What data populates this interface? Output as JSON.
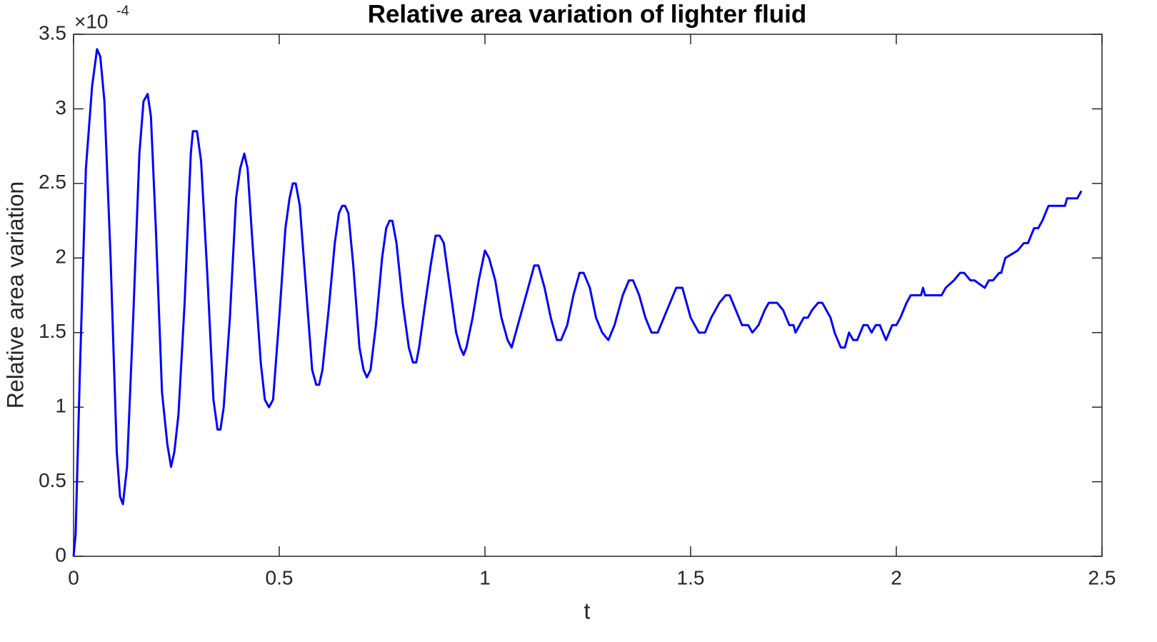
{
  "chart_data": {
    "type": "line",
    "title": "Relative area variation of lighter fluid",
    "x_label": "t",
    "y_label": "Relative area variation",
    "y_multiplier": "×10",
    "y_multiplier_exponent": "-4",
    "color": "#0000ff",
    "xlim": [
      0,
      2.5
    ],
    "xticks": [
      0,
      0.5,
      1,
      1.5,
      2,
      2.5
    ],
    "ylim": [
      0,
      3.5
    ],
    "yticks": [
      0,
      0.5,
      1,
      1.5,
      2,
      2.5,
      3,
      3.5
    ],
    "x": [
      0,
      0.005,
      0.015,
      0.03,
      0.045,
      0.057,
      0.065,
      0.075,
      0.09,
      0.105,
      0.113,
      0.12,
      0.13,
      0.145,
      0.16,
      0.17,
      0.18,
      0.188,
      0.2,
      0.215,
      0.228,
      0.237,
      0.245,
      0.255,
      0.27,
      0.285,
      0.29,
      0.3,
      0.31,
      0.325,
      0.34,
      0.35,
      0.357,
      0.365,
      0.38,
      0.395,
      0.405,
      0.415,
      0.423,
      0.435,
      0.455,
      0.465,
      0.475,
      0.485,
      0.5,
      0.515,
      0.525,
      0.533,
      0.54,
      0.55,
      0.565,
      0.58,
      0.59,
      0.597,
      0.605,
      0.62,
      0.635,
      0.645,
      0.653,
      0.66,
      0.668,
      0.68,
      0.695,
      0.705,
      0.713,
      0.722,
      0.735,
      0.75,
      0.76,
      0.768,
      0.775,
      0.785,
      0.8,
      0.815,
      0.825,
      0.833,
      0.84,
      0.855,
      0.868,
      0.88,
      0.89,
      0.9,
      0.915,
      0.93,
      0.94,
      0.948,
      0.955,
      0.97,
      0.985,
      1.0,
      1.01,
      1.025,
      1.04,
      1.055,
      1.065,
      1.08,
      1.095,
      1.11,
      1.12,
      1.13,
      1.145,
      1.16,
      1.175,
      1.185,
      1.2,
      1.215,
      1.23,
      1.24,
      1.255,
      1.27,
      1.285,
      1.3,
      1.315,
      1.325,
      1.335,
      1.35,
      1.36,
      1.375,
      1.39,
      1.405,
      1.42,
      1.435,
      1.45,
      1.465,
      1.48,
      1.49,
      1.5,
      1.52,
      1.535,
      1.55,
      1.57,
      1.585,
      1.595,
      1.61,
      1.625,
      1.64,
      1.65,
      1.665,
      1.68,
      1.69,
      1.71,
      1.725,
      1.74,
      1.75,
      1.755,
      1.765,
      1.775,
      1.785,
      1.795,
      1.81,
      1.82,
      1.83,
      1.84,
      1.85,
      1.865,
      1.875,
      1.885,
      1.895,
      1.905,
      1.92,
      1.93,
      1.94,
      1.95,
      1.96,
      1.975,
      1.99,
      2.0,
      2.01,
      2.025,
      2.035,
      2.06,
      2.065,
      2.07,
      2.11,
      2.12,
      2.14,
      2.155,
      2.165,
      2.18,
      2.19,
      2.215,
      2.225,
      2.235,
      2.25,
      2.255,
      2.265,
      2.295,
      2.31,
      2.32,
      2.335,
      2.345,
      2.355,
      2.37,
      2.385,
      2.41,
      2.415,
      2.44,
      2.45
    ],
    "values": [
      0,
      0.15,
      1.2,
      2.6,
      3.15,
      3.4,
      3.35,
      3.05,
      2.0,
      0.7,
      0.4,
      0.35,
      0.6,
      1.6,
      2.7,
      3.05,
      3.1,
      2.95,
      2.2,
      1.1,
      0.75,
      0.6,
      0.7,
      0.95,
      1.7,
      2.7,
      2.85,
      2.85,
      2.65,
      1.9,
      1.05,
      0.85,
      0.85,
      1.0,
      1.6,
      2.4,
      2.6,
      2.7,
      2.6,
      2.1,
      1.3,
      1.05,
      1.0,
      1.05,
      1.6,
      2.2,
      2.4,
      2.5,
      2.5,
      2.35,
      1.8,
      1.25,
      1.15,
      1.15,
      1.25,
      1.65,
      2.1,
      2.3,
      2.35,
      2.35,
      2.3,
      1.95,
      1.4,
      1.25,
      1.2,
      1.25,
      1.55,
      2.0,
      2.2,
      2.25,
      2.25,
      2.1,
      1.7,
      1.4,
      1.3,
      1.3,
      1.4,
      1.7,
      1.95,
      2.15,
      2.15,
      2.1,
      1.8,
      1.5,
      1.4,
      1.35,
      1.4,
      1.6,
      1.85,
      2.05,
      2.0,
      1.85,
      1.6,
      1.45,
      1.4,
      1.55,
      1.7,
      1.85,
      1.95,
      1.95,
      1.8,
      1.6,
      1.45,
      1.45,
      1.55,
      1.75,
      1.9,
      1.9,
      1.8,
      1.6,
      1.5,
      1.45,
      1.55,
      1.65,
      1.75,
      1.85,
      1.85,
      1.75,
      1.6,
      1.5,
      1.5,
      1.6,
      1.7,
      1.8,
      1.8,
      1.7,
      1.6,
      1.5,
      1.5,
      1.6,
      1.7,
      1.75,
      1.75,
      1.65,
      1.55,
      1.55,
      1.5,
      1.55,
      1.65,
      1.7,
      1.7,
      1.65,
      1.55,
      1.55,
      1.5,
      1.55,
      1.6,
      1.6,
      1.65,
      1.7,
      1.7,
      1.65,
      1.6,
      1.5,
      1.4,
      1.4,
      1.5,
      1.45,
      1.45,
      1.55,
      1.55,
      1.5,
      1.55,
      1.55,
      1.45,
      1.55,
      1.55,
      1.6,
      1.7,
      1.75,
      1.75,
      1.8,
      1.75,
      1.75,
      1.8,
      1.85,
      1.9,
      1.9,
      1.85,
      1.85,
      1.8,
      1.85,
      1.85,
      1.9,
      1.9,
      2.0,
      2.05,
      2.1,
      2.1,
      2.2,
      2.2,
      2.25,
      2.35,
      2.35,
      2.35,
      2.4,
      2.4,
      2.45
    ]
  }
}
